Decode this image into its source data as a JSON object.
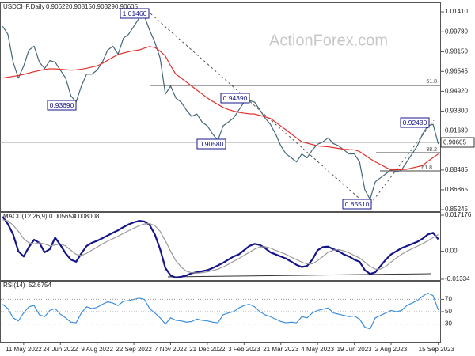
{
  "chart_data": [
    {
      "type": "line",
      "title": "USDCHF,Daily",
      "ohlc": [
        0.90622,
        0.90815,
        0.90329,
        0.90605
      ],
      "watermark": "ActionForex.com",
      "current_price_label": "0.90605",
      "annotations": [
        "1.01460",
        "0.93690",
        "0.94390",
        "0.90580",
        "0.85510",
        "0.92430"
      ],
      "fib_labels": [
        "61.8",
        "38.2",
        "61.8"
      ],
      "ylim": [
        0.8505,
        1.0219
      ],
      "yticks": [
        {
          "value": 1.0141,
          "label": "1.01410"
        },
        {
          "value": 0.9978,
          "label": "0.99780"
        },
        {
          "value": 0.9815,
          "label": "0.98150"
        },
        0.96545,
        {
          "value": 0.9492,
          "label": "0.94920"
        },
        {
          "value": 0.933,
          "label": "0.93300"
        },
        {
          "value": 0.9168,
          "label": "0.91680"
        },
        0.88485,
        0.86865,
        0.85245
      ],
      "series": [
        {
          "color": "#46687a",
          "values": [
            1.0024,
            0.9958,
            0.973,
            0.96,
            0.9698,
            0.9828,
            0.9861,
            0.973,
            0.9678,
            0.9743,
            0.973,
            0.9665,
            0.96,
            0.9456,
            0.9404,
            0.9535,
            0.9632,
            0.9632,
            0.9665,
            0.973,
            0.9828,
            0.9861,
            0.9795,
            0.9926,
            0.9958,
            1.0024,
            1.0089,
            1.0108,
            0.9991,
            0.9893,
            0.9763,
            0.9469,
            0.9535,
            0.9437,
            0.9404,
            0.9339,
            0.9287,
            0.9306,
            0.9241,
            0.9209,
            0.9143,
            0.9091,
            0.9209,
            0.9241,
            0.9274,
            0.9339,
            0.9404,
            0.9417,
            0.9404,
            0.9339,
            0.9274,
            0.9222,
            0.9143,
            0.9046,
            0.898,
            0.8948,
            0.8915,
            0.898,
            0.8948,
            0.9013,
            0.9059,
            0.9078,
            0.9111,
            0.9065,
            0.9046,
            0.9013,
            0.898,
            0.898,
            0.8915,
            0.8687,
            0.8609,
            0.8752,
            0.8785,
            0.8817,
            0.885,
            0.8831,
            0.885,
            0.8915,
            0.898,
            0.9046,
            0.9143,
            0.9209,
            0.9222,
            0.9061
          ]
        },
        {
          "color": "#e0302a",
          "values": [
            0.96,
            0.9607,
            0.9614,
            0.9621,
            0.963,
            0.9641,
            0.9652,
            0.9662,
            0.967,
            0.9676,
            0.9675,
            0.9672,
            0.9668,
            0.9665,
            0.9667,
            0.9673,
            0.968,
            0.969,
            0.97,
            0.972,
            0.9745,
            0.977,
            0.9792,
            0.9805,
            0.9815,
            0.9824,
            0.983,
            0.9845,
            0.9858,
            0.985,
            0.982,
            0.978,
            0.97,
            0.9632,
            0.96,
            0.9568,
            0.9535,
            0.9502,
            0.947,
            0.9437,
            0.941,
            0.9385,
            0.936,
            0.9343,
            0.933,
            0.932,
            0.9313,
            0.9308,
            0.9306,
            0.9295,
            0.9283,
            0.927,
            0.924,
            0.9208,
            0.9176,
            0.9143,
            0.911,
            0.9078,
            0.9068,
            0.9057,
            0.9046,
            0.9042,
            0.9038,
            0.9032,
            0.9025,
            0.9018,
            0.9015,
            0.9013,
            0.9,
            0.897,
            0.8942,
            0.8915,
            0.8893,
            0.887,
            0.885,
            0.885,
            0.8852,
            0.8855,
            0.8865,
            0.8875,
            0.8885,
            0.892,
            0.895,
            0.898
          ]
        }
      ]
    },
    {
      "type": "line",
      "title": "MACD(12,26,9)",
      "header_values": [
        0.005653,
        0.008008
      ],
      "ylim": [
        -0.0141,
        0.0187
      ],
      "yticks": [
        0.017176,
        {
          "value": 0,
          "label": "0.00"
        },
        -0.01334
      ],
      "series": [
        {
          "color": "#16168a",
          "values": [
            0.0165,
            0.013,
            0.008,
            0.0,
            -0.0025,
            0.002,
            0.0055,
            0.004,
            -0.0005,
            0.001,
            0.0065,
            0.003,
            -0.001,
            -0.004,
            -0.005,
            -0.001,
            0.0025,
            0.004,
            0.005,
            0.0062,
            0.0075,
            0.0088,
            0.01,
            0.0115,
            0.0128,
            0.0138,
            0.0145,
            0.0142,
            0.0125,
            0.008,
            0.001,
            -0.008,
            -0.0115,
            -0.0126,
            -0.0122,
            -0.0115,
            -0.0105,
            -0.01,
            -0.0095,
            -0.009,
            -0.008,
            -0.0068,
            -0.0055,
            -0.004,
            -0.0025,
            -0.0015,
            0.0005,
            0.0025,
            0.0035,
            0.003,
            0.0015,
            -0.0005,
            -0.0015,
            -0.0025,
            -0.0035,
            -0.005,
            -0.0065,
            -0.0075,
            -0.007,
            -0.004,
            0.0005,
            0.002,
            0.0022,
            0.001,
            0.0,
            -0.0015,
            -0.0025,
            -0.004,
            -0.005,
            -0.009,
            -0.0108,
            -0.01,
            -0.007,
            -0.004,
            -0.0015,
            0.0,
            0.0015,
            0.0025,
            0.0035,
            0.0045,
            0.006,
            0.008,
            0.0088,
            0.0057
          ]
        },
        {
          "color": "#9a9a9a",
          "values": [
            0.015,
            0.0145,
            0.0125,
            0.0095,
            0.006,
            0.004,
            0.0035,
            0.004,
            0.0035,
            0.0025,
            0.003,
            0.0035,
            0.0025,
            0.0005,
            -0.0015,
            -0.002,
            -0.001,
            0.0005,
            0.002,
            0.0035,
            0.0048,
            0.006,
            0.0072,
            0.0085,
            0.0098,
            0.011,
            0.0122,
            0.013,
            0.0132,
            0.0122,
            0.0095,
            0.005,
            0.0,
            -0.0045,
            -0.0075,
            -0.0095,
            -0.0102,
            -0.0104,
            -0.0102,
            -0.0098,
            -0.0092,
            -0.0085,
            -0.0075,
            -0.0062,
            -0.0048,
            -0.0035,
            -0.002,
            -0.0005,
            0.001,
            0.002,
            0.0022,
            0.0015,
            0.0005,
            -0.0005,
            -0.0015,
            -0.0028,
            -0.004,
            -0.0052,
            -0.006,
            -0.006,
            -0.0045,
            -0.0025,
            -0.0005,
            0.0005,
            0.0008,
            0.0002,
            -0.0008,
            -0.002,
            -0.0032,
            -0.0052,
            -0.0072,
            -0.0085,
            -0.0085,
            -0.0072,
            -0.0052,
            -0.0032,
            -0.0015,
            0.0,
            0.0012,
            0.0024,
            0.0036,
            0.005,
            0.0065,
            0.008
          ]
        }
      ]
    },
    {
      "type": "line",
      "title": "RSI(14)",
      "header_values": [
        52.6754
      ],
      "ylim": [
        0,
        100
      ],
      "yticks": [
        70,
        50,
        30
      ],
      "categories": [
        null,
        null,
        null,
        null,
        "11 May 2022",
        null,
        null,
        null,
        null,
        null,
        null,
        "24 Jun 2022",
        null,
        null,
        null,
        null,
        null,
        null,
        "9 Aug 2022",
        null,
        null,
        null,
        null,
        null,
        null,
        "22 Sep 2022",
        null,
        null,
        null,
        null,
        null,
        null,
        "7 Nov 2022",
        null,
        null,
        null,
        null,
        null,
        null,
        "21 Dec 2022",
        null,
        null,
        null,
        null,
        null,
        null,
        "3 Feb 2023",
        null,
        null,
        null,
        null,
        null,
        null,
        "21 Mar 2023",
        null,
        null,
        null,
        null,
        null,
        null,
        "4 May 2023",
        null,
        null,
        null,
        null,
        null,
        null,
        "19 Jun 2023",
        null,
        null,
        null,
        null,
        null,
        null,
        "2 Aug 2023",
        null,
        null,
        null,
        null,
        null,
        null,
        null,
        null,
        "15 Sep 2023"
      ],
      "series": [
        {
          "color": "#3d8fe0",
          "values": [
            62,
            55,
            40,
            35,
            48,
            58,
            60,
            45,
            42,
            52,
            55,
            46,
            40,
            33,
            32,
            48,
            58,
            55,
            57,
            62,
            66,
            64,
            60,
            67,
            68,
            70,
            72,
            70,
            55,
            48,
            40,
            30,
            40,
            36,
            35,
            33,
            34,
            38,
            36,
            35,
            33,
            32,
            45,
            48,
            50,
            56,
            60,
            62,
            58,
            50,
            45,
            42,
            38,
            34,
            32,
            33,
            32,
            42,
            40,
            48,
            52,
            54,
            56,
            48,
            46,
            44,
            42,
            43,
            38,
            25,
            22,
            40,
            44,
            48,
            52,
            50,
            52,
            60,
            64,
            68,
            75,
            80,
            76,
            52.68
          ]
        }
      ]
    }
  ]
}
